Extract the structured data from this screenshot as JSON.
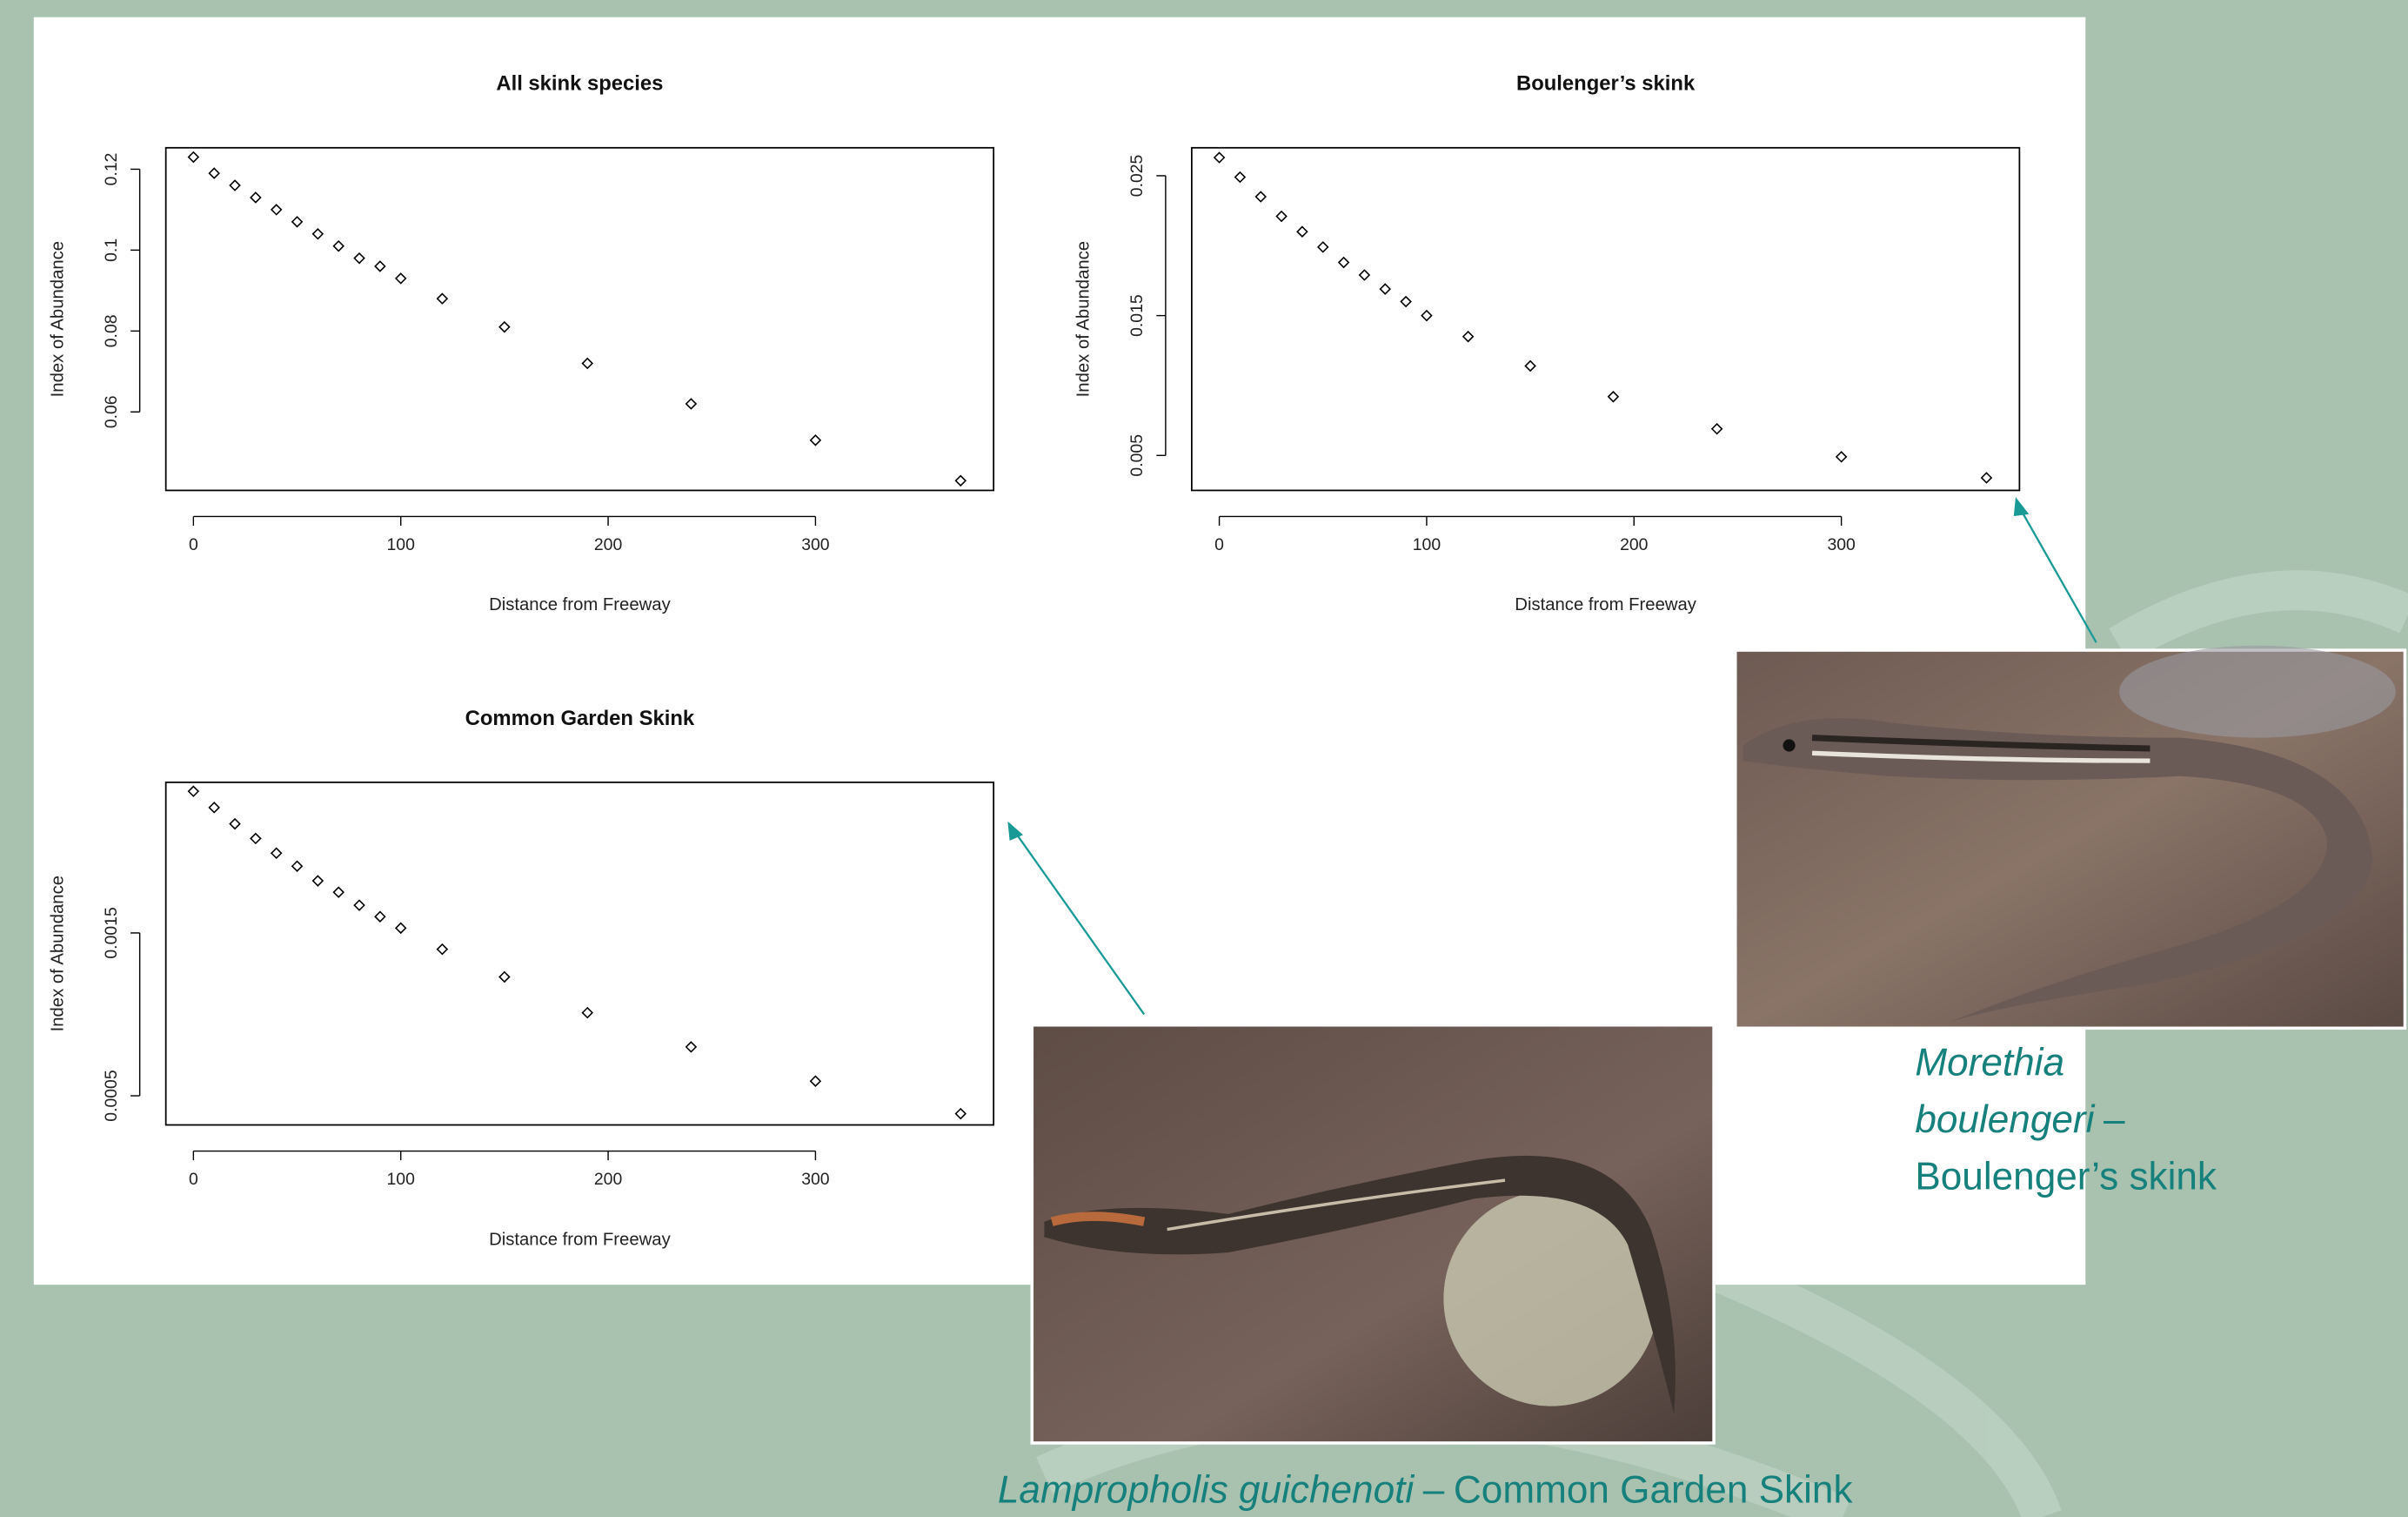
{
  "chart_data": [
    {
      "type": "scatter",
      "title": "All skink species",
      "x_label": "Distance from Freeway",
      "y_label": "Index of Abundance",
      "marker": "diamond",
      "color": "#000000",
      "x": [
        0,
        10,
        20,
        30,
        40,
        50,
        60,
        70,
        80,
        90,
        100,
        120,
        150,
        190,
        240,
        300,
        370
      ],
      "values": [
        0.123,
        0.119,
        0.116,
        0.113,
        0.11,
        0.107,
        0.104,
        0.101,
        0.098,
        0.096,
        0.093,
        0.088,
        0.081,
        0.072,
        0.062,
        0.053,
        0.043
      ],
      "xlim": [
        -13.3,
        385.9
      ],
      "ylim": [
        0.0406,
        0.1253
      ],
      "xticks": [
        0,
        100,
        200,
        300
      ],
      "yticks": [
        0.06,
        0.08,
        0.1,
        0.12
      ]
    },
    {
      "type": "scatter",
      "title": "Boulenger’s skink",
      "x_label": "Distance from Freeway",
      "y_label": "Index of Abundance",
      "marker": "diamond",
      "color": "#000000",
      "x": [
        0,
        10,
        20,
        30,
        40,
        50,
        60,
        70,
        80,
        90,
        100,
        120,
        150,
        190,
        240,
        300,
        370
      ],
      "values": [
        0.0263,
        0.0249,
        0.0235,
        0.0221,
        0.021,
        0.0199,
        0.0188,
        0.0179,
        0.0169,
        0.016,
        0.015,
        0.0135,
        0.0114,
        0.0092,
        0.0069,
        0.0049,
        0.0034
      ],
      "xlim": [
        -13.3,
        385.9
      ],
      "ylim": [
        0.0025,
        0.027
      ],
      "xticks": [
        0,
        100,
        200,
        300
      ],
      "yticks": [
        0.005,
        0.015,
        0.025
      ]
    },
    {
      "type": "scatter",
      "title": "Common Garden Skink",
      "x_label": "Distance from Freeway",
      "y_label": "Index of Abundance",
      "marker": "diamond",
      "color": "#000000",
      "x": [
        0,
        10,
        20,
        30,
        40,
        50,
        60,
        70,
        80,
        90,
        100,
        120,
        150,
        190,
        240,
        300,
        370
      ],
      "values": [
        0.00237,
        0.00227,
        0.00217,
        0.00208,
        0.00199,
        0.00191,
        0.00182,
        0.00175,
        0.00167,
        0.0016,
        0.00153,
        0.0014,
        0.00123,
        0.00101,
        0.0008,
        0.00059,
        0.00039
      ],
      "xlim": [
        -13.3,
        385.9
      ],
      "ylim": [
        0.000321,
        0.002425
      ],
      "xticks": [
        0,
        100,
        200,
        300
      ],
      "yticks": [
        0.0005,
        0.0015
      ]
    }
  ],
  "captions": [
    {
      "species_1": "Morethia",
      "species_2": "boulengeri",
      "dash": "–",
      "common": "Boulenger’s skink"
    },
    {
      "species": "Lampropholis guichenoti",
      "dash": "–",
      "common": "Common Garden Skink"
    }
  ]
}
